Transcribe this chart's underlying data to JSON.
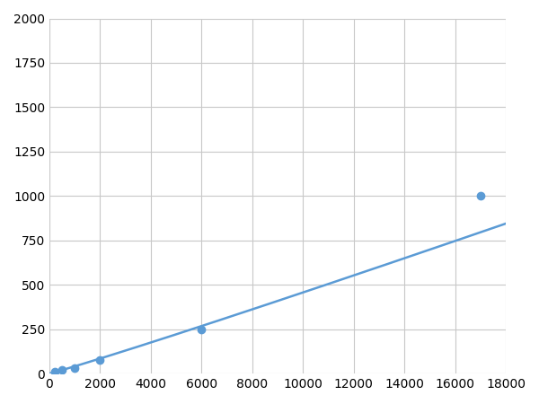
{
  "x": [
    200,
    500,
    1000,
    2000,
    6000,
    17000
  ],
  "y": [
    10,
    20,
    30,
    75,
    250,
    1000
  ],
  "line_color": "#5b9bd5",
  "marker_color": "#5b9bd5",
  "marker_size": 6,
  "line_width": 1.8,
  "xlim": [
    0,
    18000
  ],
  "ylim": [
    0,
    2000
  ],
  "xticks": [
    0,
    2000,
    4000,
    6000,
    8000,
    10000,
    12000,
    14000,
    16000,
    18000
  ],
  "yticks": [
    0,
    250,
    500,
    750,
    1000,
    1250,
    1500,
    1750,
    2000
  ],
  "grid_color": "#c8c8c8",
  "bg_color": "#ffffff",
  "fig_bg_color": "#ffffff",
  "tick_fontsize": 10
}
